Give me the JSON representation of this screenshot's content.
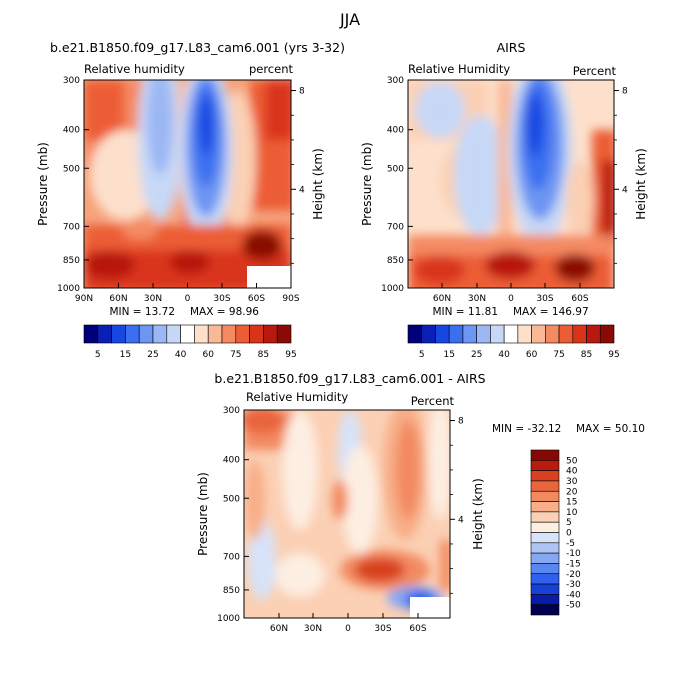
{
  "figure": {
    "season": "JJA"
  },
  "colors": {
    "blue_to_red": [
      "#00007a",
      "#0a1fb5",
      "#1747e0",
      "#3a6ff0",
      "#6d95f2",
      "#9bb7f4",
      "#c7d8f7",
      "#ffffff",
      "#fde0cc",
      "#f9b896",
      "#f48a63",
      "#ec5d36",
      "#d9341a",
      "#b8180e",
      "#8b0a05"
    ],
    "diff": [
      "#00004e",
      "#0a1aa8",
      "#1640d8",
      "#2e62ee",
      "#5887f1",
      "#86a8f3",
      "#aec4f5",
      "#d6e3f9",
      "#fdeee2",
      "#fbd0b4",
      "#f8ae88",
      "#f28a60",
      "#e9653c",
      "#d8401f",
      "#b81c0d",
      "#860804"
    ]
  },
  "chart_data": [
    {
      "type": "heatmap",
      "title": "b.e21.B1850.f09_g17.L83_cam6.001 (yrs 3-32)",
      "variable_label": "Relative humidity",
      "units_label": "percent",
      "ylabel": "Pressure (mb)",
      "y2label": "Height (km)",
      "x_ticks": [
        "90N",
        "60N",
        "30N",
        "0",
        "30S",
        "60S",
        "90S"
      ],
      "y_ticks": [
        "300",
        "400",
        "500",
        "700",
        "850",
        "1000"
      ],
      "y2_ticks": [
        "8",
        "4"
      ],
      "min_label": "MIN = 13.72",
      "max_label": "MAX = 98.96",
      "colorbar_labels": [
        "5",
        "15",
        "25",
        "40",
        "60",
        "75",
        "85",
        "95"
      ]
    },
    {
      "type": "heatmap",
      "title": "AIRS",
      "variable_label": "Relative Humidity",
      "units_label": "Percent",
      "ylabel": "Pressure (mb)",
      "y2label": "Height (km)",
      "x_ticks": [
        "60N",
        "30N",
        "0",
        "30S",
        "60S"
      ],
      "y_ticks": [
        "300",
        "400",
        "500",
        "700",
        "850",
        "1000"
      ],
      "y2_ticks": [
        "8",
        "4"
      ],
      "min_label": "MIN = 11.81",
      "max_label": "MAX = 146.97",
      "colorbar_labels": [
        "5",
        "15",
        "25",
        "40",
        "60",
        "75",
        "85",
        "95"
      ]
    },
    {
      "type": "heatmap",
      "title": "b.e21.B1850.f09_g17.L83_cam6.001 - AIRS",
      "variable_label": "Relative Humidity",
      "units_label": "Percent",
      "ylabel": "Pressure (mb)",
      "y2label": "Height (km)",
      "x_ticks": [
        "60N",
        "30N",
        "0",
        "30S",
        "60S"
      ],
      "y_ticks": [
        "300",
        "400",
        "500",
        "700",
        "850",
        "1000"
      ],
      "y2_ticks": [
        "8",
        "4"
      ],
      "min_label": "MIN = -32.12",
      "max_label": "MAX = 50.10",
      "colorbar_labels": [
        "50",
        "40",
        "30",
        "20",
        "15",
        "10",
        "5",
        "0",
        "-5",
        "-10",
        "-15",
        "-20",
        "-30",
        "-40",
        "-50"
      ]
    }
  ]
}
